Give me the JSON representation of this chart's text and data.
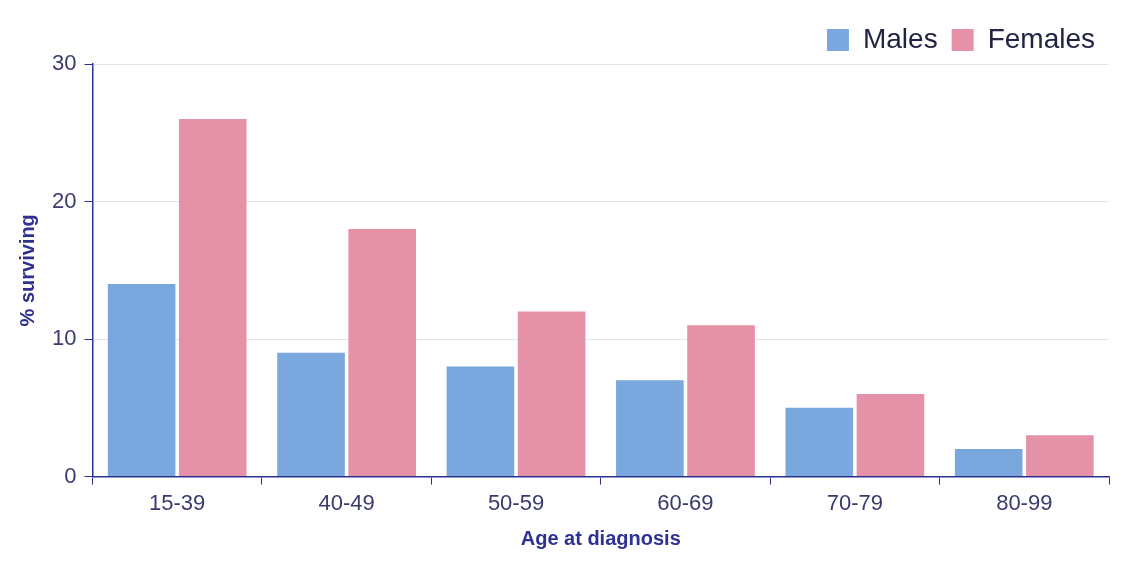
{
  "chart_data": {
    "type": "bar",
    "xlabel": "Age at diagnosis",
    "ylabel": "% surviving",
    "categories": [
      "15-39",
      "40-49",
      "50-59",
      "60-69",
      "70-79",
      "80-99"
    ],
    "series": [
      {
        "name": "Males",
        "color": "#7aa7dd",
        "values": [
          14,
          9,
          8,
          7,
          5,
          2
        ]
      },
      {
        "name": "Females",
        "color": "#e592a8",
        "values": [
          26,
          18,
          12,
          11,
          6,
          3
        ]
      }
    ],
    "ylim": [
      0,
      30
    ],
    "yticks": [
      0,
      10,
      20,
      30
    ],
    "grid": "y",
    "legend": "top right"
  }
}
